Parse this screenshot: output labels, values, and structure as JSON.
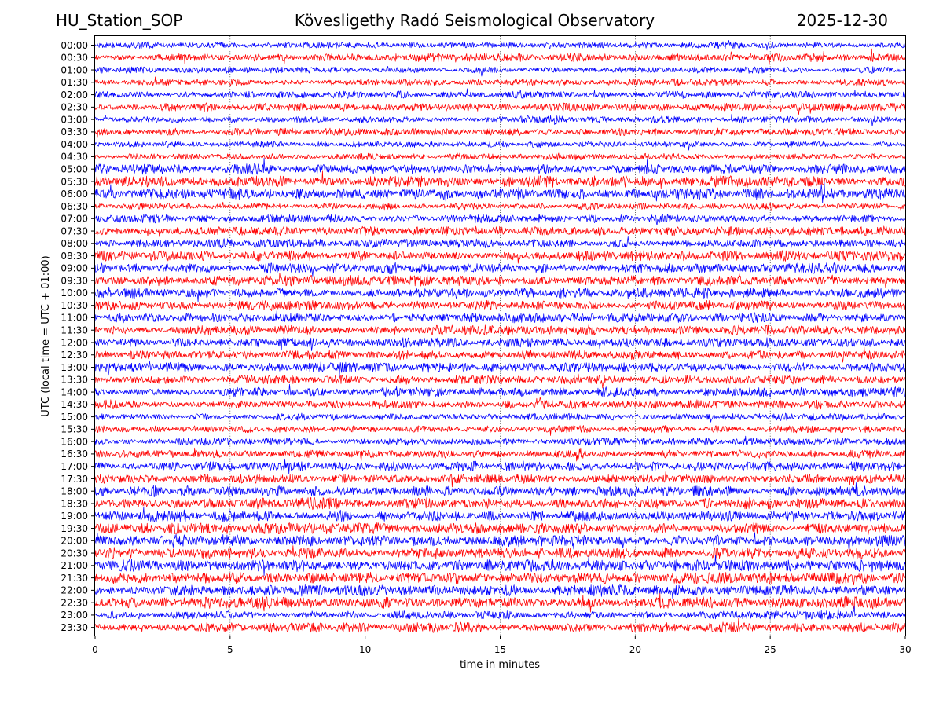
{
  "header": {
    "station": "HU_Station_SOP",
    "observatory": "Kövesligethy Radó Seismological Observatory",
    "date": "2025-12-30"
  },
  "chart_data": {
    "type": "line",
    "title": "Kövesligethy Radó Seismological Observatory",
    "xlabel": "time in minutes",
    "ylabel": "UTC (local time = UTC + 01:00)",
    "xlim": [
      0,
      30
    ],
    "x_ticks": [
      "0",
      "5",
      "10",
      "15",
      "20",
      "25",
      "30"
    ],
    "x_tick_values": [
      0,
      5,
      10,
      15,
      20,
      25,
      30
    ],
    "grid": "vertical dotted at each x tick",
    "colors": {
      "even_rows": "#0000ff",
      "odd_rows": "#ff0000"
    },
    "rows": [
      "00:00",
      "00:30",
      "01:00",
      "01:30",
      "02:00",
      "02:30",
      "03:00",
      "03:30",
      "04:00",
      "04:30",
      "05:00",
      "05:30",
      "06:00",
      "06:30",
      "07:00",
      "07:30",
      "08:00",
      "08:30",
      "09:00",
      "09:30",
      "10:00",
      "10:30",
      "11:00",
      "11:30",
      "12:00",
      "12:30",
      "13:00",
      "13:30",
      "14:00",
      "14:30",
      "15:00",
      "15:30",
      "16:00",
      "16:30",
      "17:00",
      "17:30",
      "18:00",
      "18:30",
      "19:00",
      "19:30",
      "20:00",
      "20:30",
      "21:00",
      "21:30",
      "22:00",
      "22:30",
      "23:00",
      "23:30"
    ],
    "row_noise_amplitude": [
      0.45,
      0.55,
      0.45,
      0.5,
      0.5,
      0.55,
      0.45,
      0.5,
      0.4,
      0.45,
      0.7,
      0.75,
      0.75,
      0.45,
      0.55,
      0.6,
      0.6,
      0.7,
      0.7,
      0.7,
      0.7,
      0.65,
      0.65,
      0.65,
      0.65,
      0.6,
      0.65,
      0.6,
      0.65,
      0.6,
      0.5,
      0.5,
      0.5,
      0.55,
      0.65,
      0.65,
      0.7,
      0.75,
      0.75,
      0.75,
      0.75,
      0.75,
      0.8,
      0.8,
      0.8,
      0.8,
      0.55,
      0.65
    ],
    "events": [
      {
        "row": "06:00",
        "minute": 26.9,
        "amplitude": 2.4,
        "duration_min": 0.35
      },
      {
        "row": "16:30",
        "minute": 17.85,
        "amplitude": 1.2,
        "duration_min": 0.45
      },
      {
        "row": "19:00",
        "minute": 3.2,
        "amplitude": 1.1,
        "duration_min": 0.4
      },
      {
        "row": "20:00",
        "minute": 2.9,
        "amplitude": 1.0,
        "duration_min": 0.35
      },
      {
        "row": "03:00",
        "minute": 16.9,
        "amplitude": 0.9,
        "duration_min": 0.6
      },
      {
        "row": "12:00",
        "minute": 6.9,
        "amplitude": 0.9,
        "duration_min": 0.3
      },
      {
        "row": "22:30",
        "minute": 22.6,
        "amplitude": 0.9,
        "duration_min": 0.3
      },
      {
        "row": "02:00",
        "minute": 21.7,
        "amplitude": 0.8,
        "duration_min": 0.3
      }
    ]
  }
}
